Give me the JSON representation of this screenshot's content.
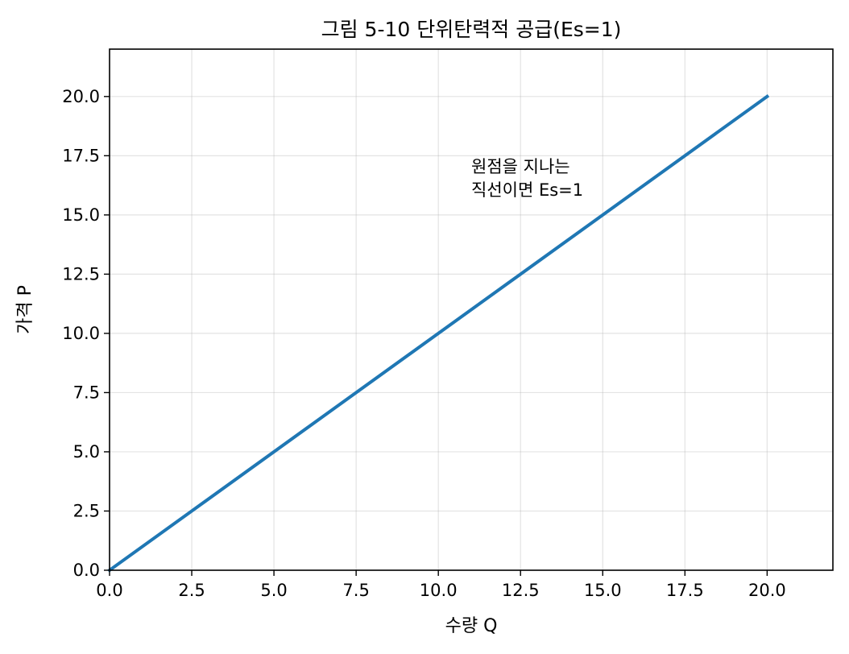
{
  "chart_data": {
    "type": "line",
    "title": "그림 5-10  단위탄력적 공급(Es=1)",
    "xlabel": "수량 Q",
    "ylabel": "가격 P",
    "xlim": [
      0,
      22
    ],
    "ylim": [
      0,
      22
    ],
    "xticks": [
      0,
      2.5,
      5,
      7.5,
      10,
      12.5,
      15,
      17.5,
      20
    ],
    "yticks": [
      0,
      2.5,
      5,
      7.5,
      10,
      12.5,
      15,
      17.5,
      20
    ],
    "xtick_labels": [
      "0.0",
      "2.5",
      "5.0",
      "7.5",
      "10.0",
      "12.5",
      "15.0",
      "17.5",
      "20.0"
    ],
    "ytick_labels": [
      "0.0",
      "2.5",
      "5.0",
      "7.5",
      "10.0",
      "12.5",
      "15.0",
      "17.5",
      "20.0"
    ],
    "grid": true,
    "series": [
      {
        "color": "#1f77b4",
        "x": [
          0,
          20
        ],
        "y": [
          0,
          20
        ]
      }
    ],
    "annotations": [
      {
        "lines": [
          "원점을 지나는",
          "직선이면 Es=1"
        ],
        "x": 11,
        "y": 16.8
      }
    ]
  }
}
